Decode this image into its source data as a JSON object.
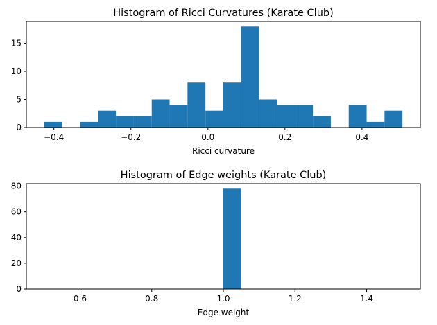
{
  "chart_data": [
    {
      "type": "bar",
      "title": "Histogram of Ricci Curvatures (Karate Club)",
      "xlabel": "Ricci curvature",
      "ylabel": "",
      "color": "#1f77b4",
      "bin_edges": [
        -0.425,
        -0.3785,
        -0.332,
        -0.2855,
        -0.239,
        -0.1925,
        -0.146,
        -0.0995,
        -0.053,
        -0.0065,
        0.04,
        0.0865,
        0.133,
        0.1795,
        0.226,
        0.2725,
        0.319,
        0.3655,
        0.412,
        0.4585,
        0.505
      ],
      "values": [
        1,
        0,
        1,
        3,
        2,
        2,
        5,
        4,
        8,
        3,
        8,
        18,
        5,
        4,
        4,
        2,
        0,
        4,
        1,
        3
      ],
      "xlim": [
        -0.4715,
        0.5515
      ],
      "ylim": [
        0,
        18.9
      ],
      "xticks": [
        -0.4,
        -0.2,
        0.0,
        0.2,
        0.4
      ],
      "xtick_labels": [
        "−0.4",
        "−0.2",
        "0.0",
        "0.2",
        "0.4"
      ],
      "yticks": [
        0,
        5,
        10,
        15
      ],
      "ytick_labels": [
        "0",
        "5",
        "10",
        "15"
      ]
    },
    {
      "type": "bar",
      "title": "Histogram of Edge weights (Karate Club)",
      "xlabel": "Edge weight",
      "ylabel": "",
      "color": "#1f77b4",
      "bin_edges": [
        0.5,
        0.55,
        0.6,
        0.65,
        0.7,
        0.75,
        0.8,
        0.85,
        0.9,
        0.95,
        1.0,
        1.05,
        1.1,
        1.15,
        1.2,
        1.25,
        1.3,
        1.35,
        1.4,
        1.45,
        1.5
      ],
      "values": [
        0,
        0,
        0,
        0,
        0,
        0,
        0,
        0,
        0,
        0,
        78,
        0,
        0,
        0,
        0,
        0,
        0,
        0,
        0,
        0
      ],
      "xlim": [
        0.45,
        1.55
      ],
      "ylim": [
        0,
        81.9
      ],
      "xticks": [
        0.6,
        0.8,
        1.0,
        1.2,
        1.4
      ],
      "xtick_labels": [
        "0.6",
        "0.8",
        "1.0",
        "1.2",
        "1.4"
      ],
      "yticks": [
        0,
        20,
        40,
        60,
        80
      ],
      "ytick_labels": [
        "0",
        "20",
        "40",
        "60",
        "80"
      ]
    }
  ]
}
